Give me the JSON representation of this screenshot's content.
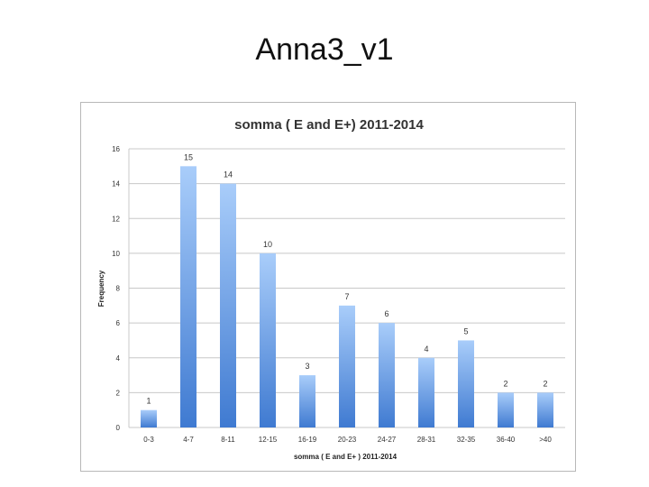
{
  "slide": {
    "title": "Anna3_v1"
  },
  "chart_data": {
    "type": "bar",
    "title": "somma ( E and E+)   2011-2014",
    "xlabel": "somma ( E and E+ ) 2011-2014",
    "ylabel": "Frequency",
    "categories": [
      "0-3",
      "4-7",
      "8-11",
      "12-15",
      "16-19",
      "20-23",
      "24-27",
      "28-31",
      "32-35",
      "36-40",
      ">40"
    ],
    "values": [
      1,
      15,
      14,
      10,
      3,
      7,
      6,
      4,
      5,
      2,
      2
    ],
    "ylim": [
      0,
      16
    ],
    "yticks": [
      0,
      2,
      4,
      6,
      8,
      10,
      12,
      14,
      16
    ],
    "grid": true,
    "legend": "none",
    "bar_color_top": "#a9cdfa",
    "bar_color_bottom": "#3f7ad1",
    "grid_color": "#c8c8c8"
  }
}
